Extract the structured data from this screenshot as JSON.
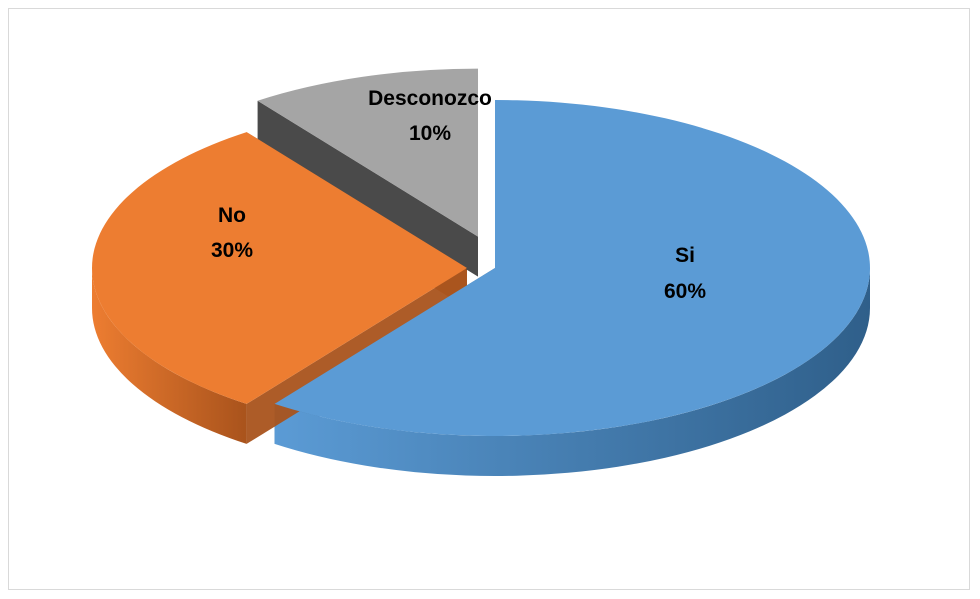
{
  "chart_data": {
    "type": "pie",
    "title": "",
    "legend": "none",
    "slices": [
      {
        "label": "Si",
        "value": 60,
        "value_label": "60%",
        "color": "#5b9bd5",
        "dark": "#2f5f8a"
      },
      {
        "label": "No",
        "value": 30,
        "value_label": "30%",
        "color": "#ed7d31",
        "dark": "#a9531c"
      },
      {
        "label": "Desconozco",
        "value": 10,
        "value_label": "10%",
        "color": "#a5a5a5",
        "dark": "#404040"
      }
    ]
  }
}
